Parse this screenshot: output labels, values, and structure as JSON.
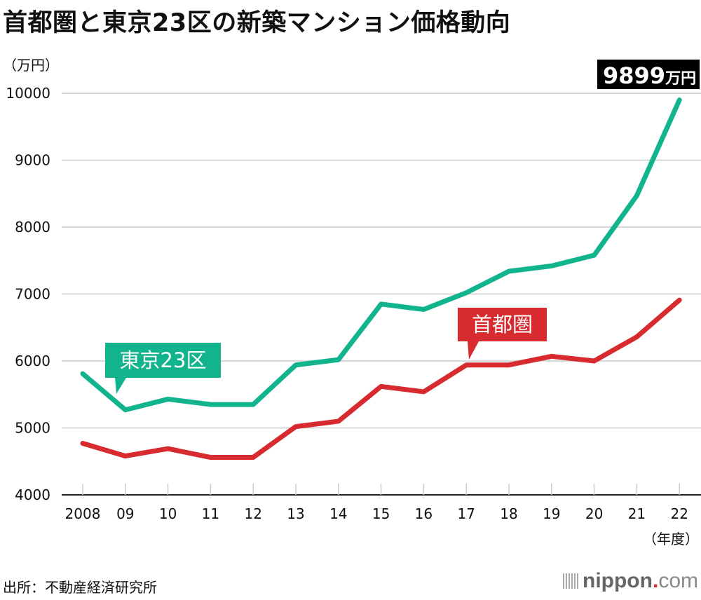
{
  "title": "首都圏と東京23区の新築マンション価格動向",
  "unit_label": "（万円）",
  "source": "出所：不動産経済研究所",
  "brand": {
    "name": "nippon",
    "dot": ".",
    "suffix": "com"
  },
  "colors": {
    "tokyo23": "#12b48e",
    "shutoken": "#d72b2f",
    "grid": "#cccccc",
    "axis": "#222222"
  },
  "chart_data": {
    "type": "line",
    "title": "首都圏と東京23区の新築マンション価格動向",
    "xlabel": "（年度）",
    "ylabel": "（万円）",
    "categories": [
      "2008",
      "09",
      "10",
      "11",
      "12",
      "13",
      "14",
      "15",
      "16",
      "17",
      "18",
      "19",
      "20",
      "21",
      "22"
    ],
    "ylim": [
      4000,
      10000
    ],
    "yticks": [
      4000,
      5000,
      6000,
      7000,
      8000,
      9000,
      10000
    ],
    "grid": true,
    "series": [
      {
        "name": "東京23区",
        "color": "#12b48e",
        "values": [
          5810,
          5270,
          5430,
          5350,
          5350,
          5940,
          6020,
          6850,
          6770,
          7020,
          7340,
          7420,
          7580,
          8470,
          9899
        ]
      },
      {
        "name": "首都圏",
        "color": "#d72b2f",
        "values": [
          4770,
          4580,
          4690,
          4560,
          4560,
          5020,
          5100,
          5620,
          5540,
          5940,
          5940,
          6070,
          6000,
          6360,
          6910
        ]
      }
    ],
    "annotations": [
      {
        "series": "東京23区",
        "category": "22",
        "text_value": "9899",
        "text_unit": "万円"
      }
    ]
  }
}
